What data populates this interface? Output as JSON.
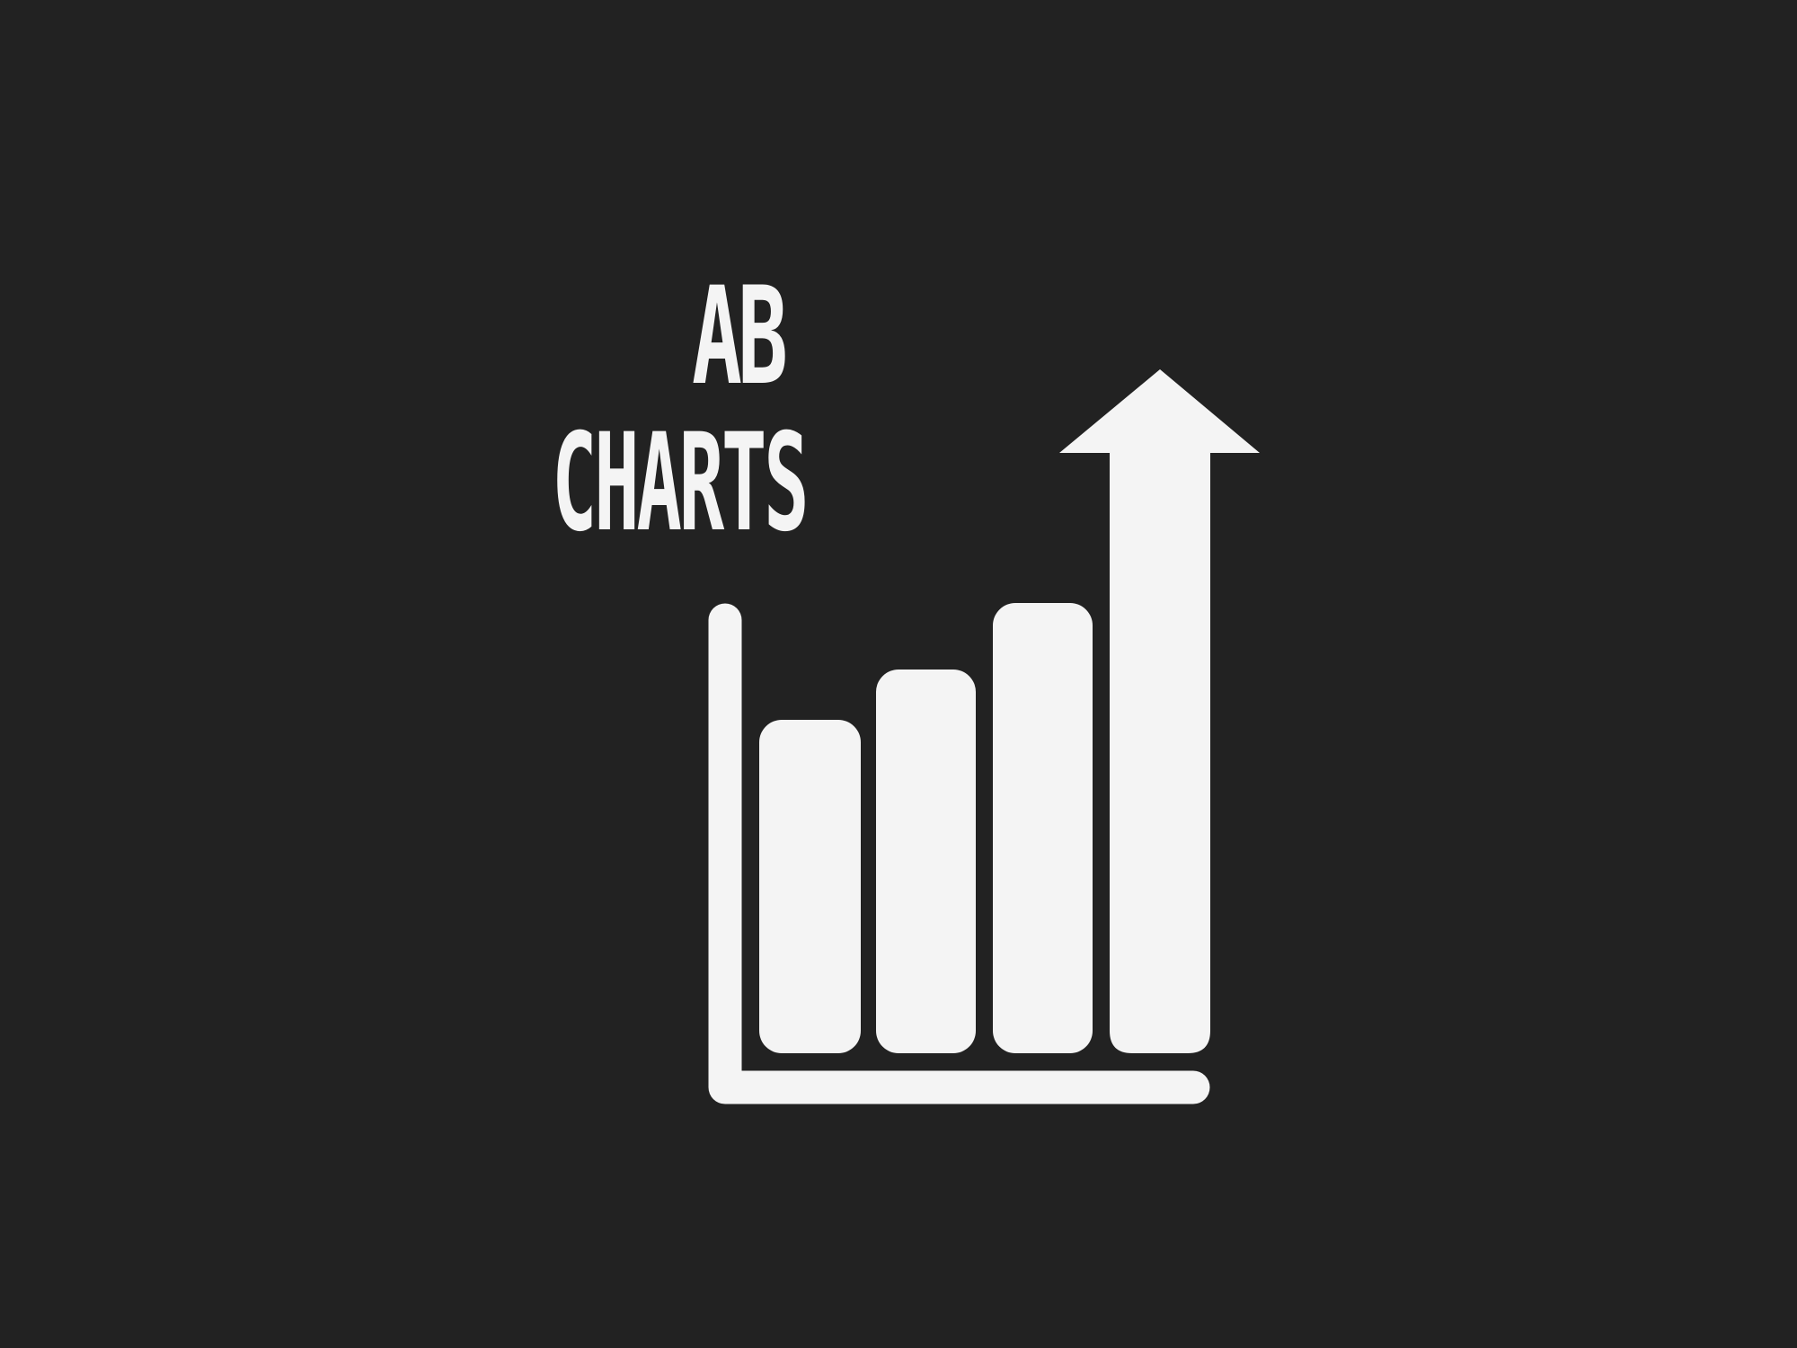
{
  "logo": {
    "line1": "AB",
    "line2": "CHARTS"
  },
  "colors": {
    "background": "#222222",
    "foreground": "#f4f4f4"
  },
  "icon": "bar-chart-growth-arrow-icon"
}
